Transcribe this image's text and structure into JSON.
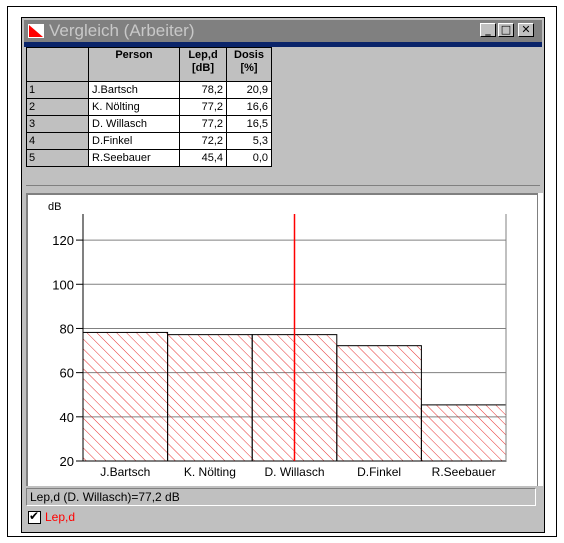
{
  "window": {
    "title": "Vergleich (Arbeiter)",
    "minimize_label": "_",
    "maximize_label": "□",
    "close_label": "✕"
  },
  "table": {
    "headers": [
      {
        "line1": "Person",
        "line2": ""
      },
      {
        "line1": "Lep,d",
        "line2": "[dB]"
      },
      {
        "line1": "Dosis",
        "line2": "[%]"
      }
    ],
    "rows": [
      {
        "num": "1",
        "person": "J.Bartsch",
        "lepd": "78,2",
        "dosis": "20,9"
      },
      {
        "num": "2",
        "person": "K. Nölting",
        "lepd": "77,2",
        "dosis": "16,6"
      },
      {
        "num": "3",
        "person": "D. Willasch",
        "lepd": "77,2",
        "dosis": "16,5"
      },
      {
        "num": "4",
        "person": "D.Finkel",
        "lepd": "72,2",
        "dosis": "5,3"
      },
      {
        "num": "5",
        "person": "R.Seebauer",
        "lepd": "45,4",
        "dosis": "0,0"
      }
    ]
  },
  "chart_data": {
    "type": "bar",
    "ylabel": "dB",
    "categories": [
      "J.Bartsch",
      "K. Nölting",
      "D. Willasch",
      "D.Finkel",
      "R.Seebauer"
    ],
    "series": [
      {
        "name": "Lep,d",
        "values": [
          78.2,
          77.2,
          77.2,
          72.2,
          45.4
        ]
      }
    ],
    "ylim": [
      20,
      130
    ],
    "yticks": [
      20,
      40,
      60,
      80,
      100,
      120
    ],
    "grid": true,
    "cursor_category": "D. Willasch",
    "bar_fill": "red hatched",
    "colors": {
      "bar": "#e83030",
      "cursor": "#ff0000",
      "axis": "#000000"
    }
  },
  "status": {
    "text": "Lep,d (D. Willasch)=77,2 dB"
  },
  "legend": {
    "checked": true,
    "label": "Lep,d"
  }
}
